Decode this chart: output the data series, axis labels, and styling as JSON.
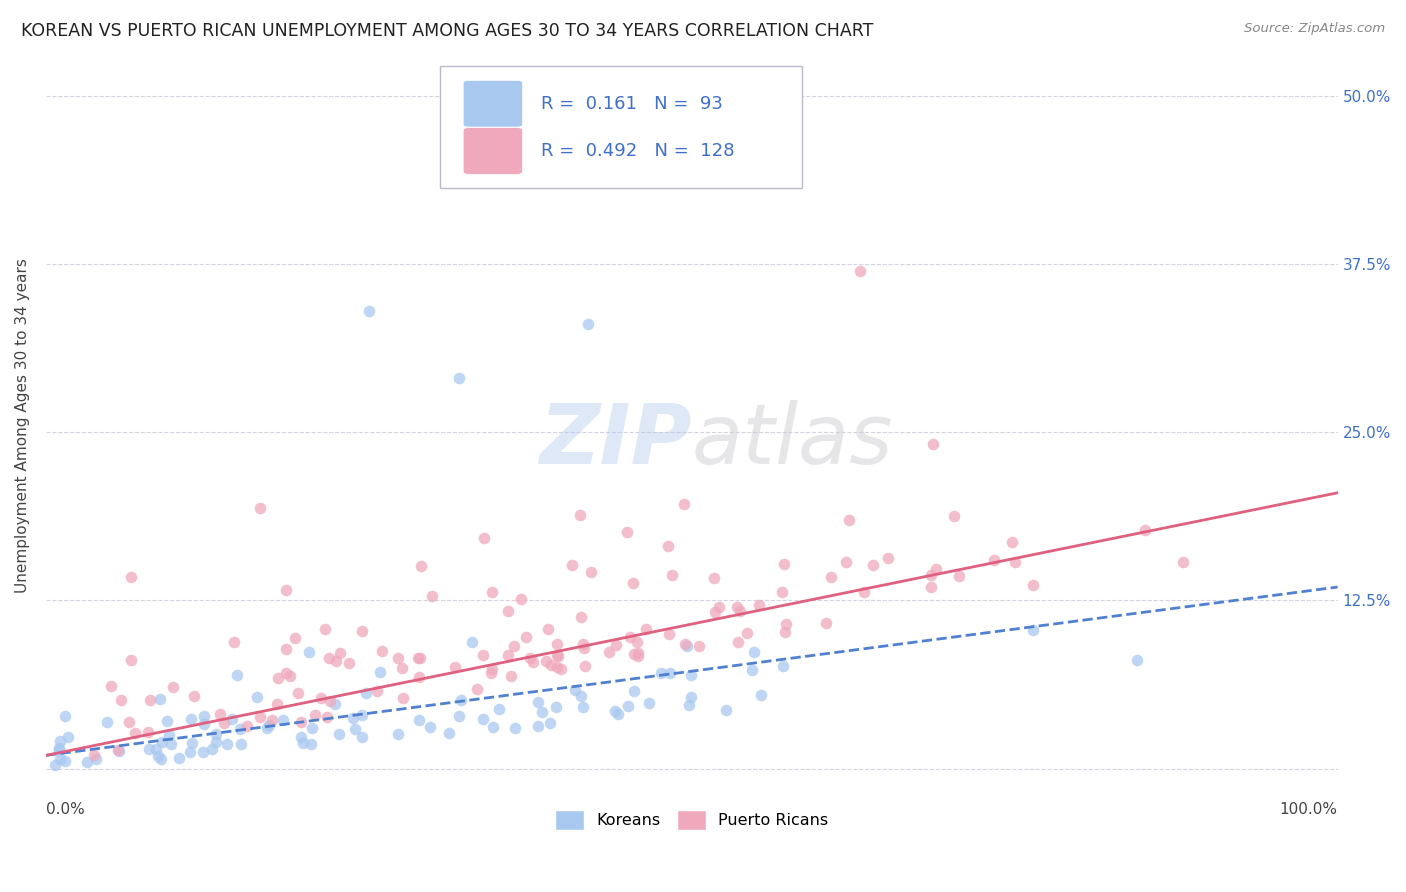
{
  "title": "KOREAN VS PUERTO RICAN UNEMPLOYMENT AMONG AGES 30 TO 34 YEARS CORRELATION CHART",
  "source": "Source: ZipAtlas.com",
  "ylabel": "Unemployment Among Ages 30 to 34 years",
  "ytick_values": [
    0.0,
    0.125,
    0.25,
    0.375,
    0.5
  ],
  "ytick_labels": [
    "",
    "12.5%",
    "25.0%",
    "37.5%",
    "50.0%"
  ],
  "xmin": 0.0,
  "xmax": 1.0,
  "ymin": -0.02,
  "ymax": 0.53,
  "korean_color": "#a8c8f0",
  "puerto_rican_color": "#f0a8bc",
  "korean_line_color": "#5080d0",
  "puerto_rican_line_color": "#e06080",
  "right_tick_color": "#4070c8",
  "legend_text_color": "#4070c8",
  "legend_korean_r": "0.161",
  "legend_korean_n": "93",
  "legend_pr_r": "0.492",
  "legend_pr_n": "128",
  "korean_trendline_x": [
    0.0,
    1.0
  ],
  "korean_trendline_y": [
    0.01,
    0.135
  ],
  "pr_trendline_x": [
    0.0,
    1.0
  ],
  "pr_trendline_y": [
    0.01,
    0.205
  ],
  "background_color": "#ffffff",
  "grid_color": "#c8c8d8",
  "title_fontsize": 12.5,
  "axis_label_fontsize": 11,
  "tick_fontsize": 11,
  "legend_fontsize": 13,
  "watermark_fontsize": 60,
  "scatter_size": 70,
  "scatter_alpha": 0.75
}
